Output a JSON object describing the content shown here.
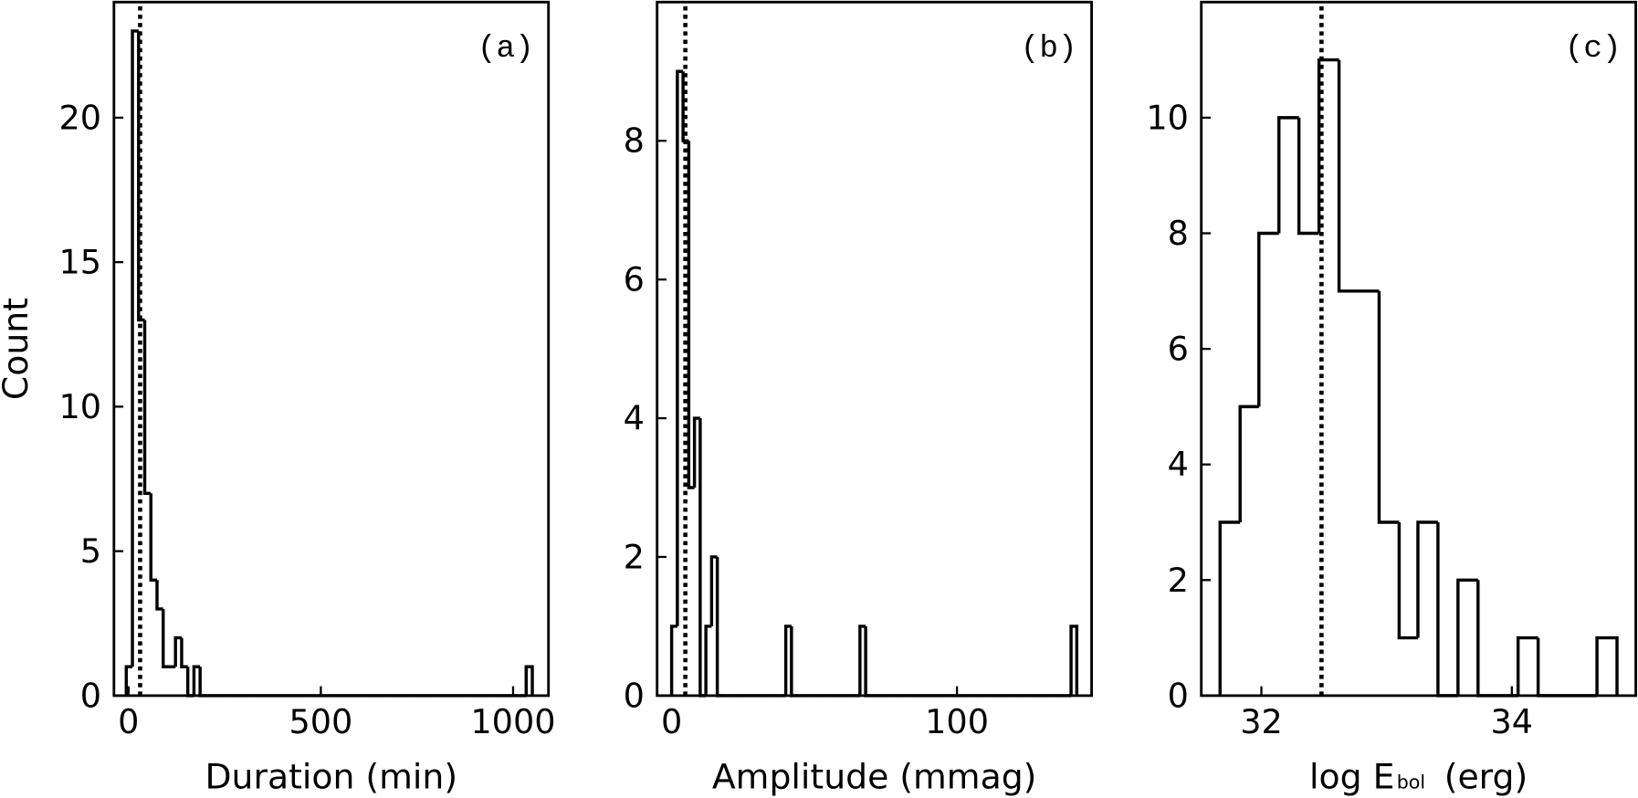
{
  "chart_data": [
    {
      "type": "histogram",
      "label": "(a)",
      "xlabel": "Duration (min)",
      "ylabel": "Count",
      "bins": [
        -6,
        10,
        26,
        42,
        58,
        74,
        90,
        106,
        122,
        138,
        154,
        170,
        186,
        202,
        218,
        234,
        250,
        266,
        282,
        298,
        314,
        330,
        346,
        362,
        378,
        394,
        410,
        426,
        442,
        458,
        474,
        490,
        506,
        522,
        538,
        554,
        570,
        586,
        602,
        618,
        634,
        650,
        666,
        682,
        698,
        714,
        730,
        746,
        762,
        778,
        794,
        810,
        826,
        842,
        858,
        874,
        890,
        906,
        922,
        938,
        954,
        970,
        986,
        1002,
        1018,
        1034,
        1050
      ],
      "values": [
        1,
        23,
        13,
        7,
        4,
        3,
        1,
        1,
        2,
        1,
        0,
        1,
        0,
        0,
        0,
        0,
        0,
        0,
        0,
        0,
        0,
        0,
        0,
        0,
        0,
        0,
        0,
        0,
        0,
        0,
        0,
        0,
        0,
        0,
        0,
        0,
        0,
        0,
        0,
        0,
        0,
        0,
        0,
        0,
        0,
        0,
        0,
        0,
        0,
        0,
        0,
        0,
        0,
        0,
        0,
        0,
        0,
        0,
        0,
        0,
        0,
        0,
        0,
        0,
        0,
        1
      ],
      "vline": 30,
      "color": "#000000",
      "xlim": [
        -38,
        1092
      ],
      "ylim": [
        0,
        24
      ],
      "xticks": [
        0,
        500,
        1000
      ],
      "yticks": [
        0,
        5,
        10,
        15,
        20
      ]
    },
    {
      "type": "histogram",
      "label": "(b)",
      "xlabel": "Amplitude (mmag)",
      "bins": [
        0,
        2,
        4,
        6,
        8,
        10,
        12,
        14,
        16,
        18,
        20,
        22,
        24,
        26,
        28,
        30,
        32,
        34,
        36,
        38,
        40,
        42,
        44,
        46,
        48,
        50,
        52,
        54,
        56,
        58,
        60,
        62,
        64,
        66,
        68,
        70,
        72,
        74,
        76,
        78,
        80,
        82,
        84,
        86,
        88,
        90,
        92,
        94,
        96,
        98,
        100,
        102,
        104,
        106,
        108,
        110,
        112,
        114,
        116,
        118,
        120,
        122,
        124,
        126,
        128,
        130,
        132,
        134,
        136,
        138,
        140,
        142
      ],
      "values": [
        1,
        9,
        8,
        3,
        4,
        0,
        1,
        2,
        0,
        0,
        0,
        0,
        0,
        0,
        0,
        0,
        0,
        0,
        0,
        0,
        1,
        0,
        0,
        0,
        0,
        0,
        0,
        0,
        0,
        0,
        0,
        0,
        0,
        1,
        0,
        0,
        0,
        0,
        0,
        0,
        0,
        0,
        0,
        0,
        0,
        0,
        0,
        0,
        0,
        0,
        0,
        0,
        0,
        0,
        0,
        0,
        0,
        0,
        0,
        0,
        0,
        0,
        0,
        0,
        0,
        0,
        0,
        0,
        0,
        0,
        1
      ],
      "vline": 4.8,
      "color": "#000000",
      "xlim": [
        -5.1,
        147.2
      ],
      "ylim": [
        0,
        10
      ],
      "xticks": [
        0,
        100
      ],
      "yticks": [
        0,
        2,
        4,
        6,
        8
      ]
    },
    {
      "type": "histogram",
      "label": "(c)",
      "xlabel_parts": [
        "log E",
        "bol",
        "(erg)"
      ],
      "bins": [
        31.67,
        31.83,
        31.98,
        32.14,
        32.3,
        32.46,
        32.62,
        32.78,
        32.94,
        33.1,
        33.25,
        33.41,
        33.57,
        33.73,
        33.89,
        34.05,
        34.21,
        34.37,
        34.53,
        34.68,
        34.84
      ],
      "values": [
        3,
        5,
        8,
        10,
        8,
        11,
        7,
        7,
        3,
        1,
        3,
        0,
        2,
        0,
        0,
        1,
        0,
        0,
        0,
        1
      ],
      "vline": 32.48,
      "color": "#000000",
      "xlim": [
        31.52,
        34.99
      ],
      "ylim": [
        0,
        12
      ],
      "xticks": [
        32,
        34
      ],
      "yticks": [
        0,
        2,
        4,
        6,
        8,
        10
      ]
    }
  ]
}
